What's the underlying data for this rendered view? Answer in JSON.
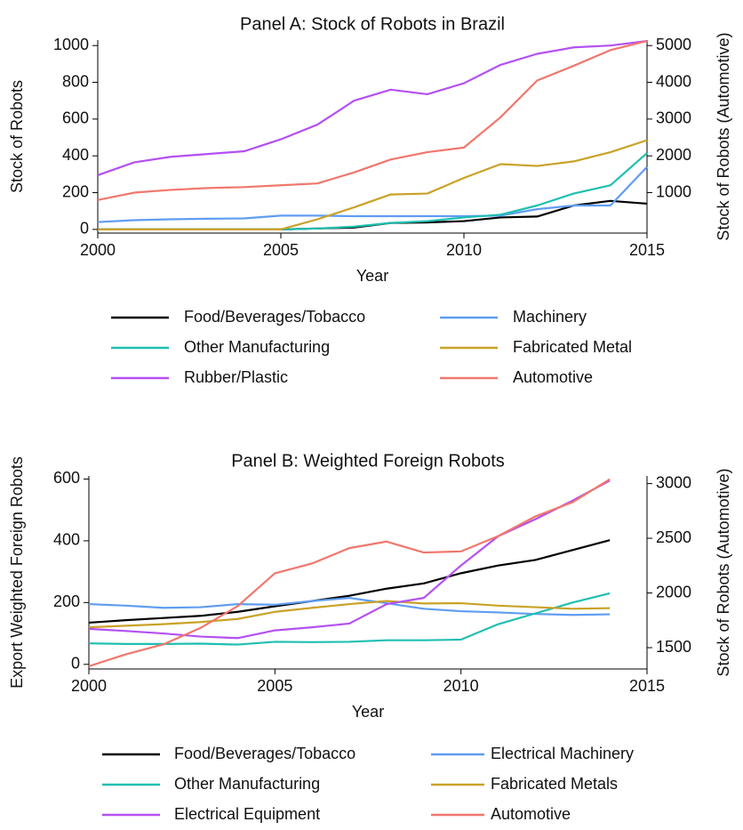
{
  "chart_data": [
    {
      "type": "line",
      "title": "Panel A: Stock of Robots in Brazil",
      "x_label": "Year",
      "y_label": "Stock of Robots",
      "y2_label": "Stock of Robots (Automotive)",
      "x": [
        2000,
        2001,
        2002,
        2003,
        2004,
        2005,
        2006,
        2007,
        2008,
        2009,
        2010,
        2011,
        2012,
        2013,
        2014,
        2015
      ],
      "xlim": [
        2000,
        2015
      ],
      "xticks": [
        2000,
        2005,
        2010,
        2015
      ],
      "ylim": [
        -20,
        1030
      ],
      "yticks": [
        0,
        200,
        400,
        600,
        800,
        1000
      ],
      "y2lim": [
        -100,
        5150
      ],
      "y2ticks": [
        1000,
        2000,
        3000,
        4000,
        5000
      ],
      "series": [
        {
          "name": "Food/Beverages/Tobacco",
          "color": "#000000",
          "values": [
            0,
            0,
            0,
            0,
            0,
            0,
            5,
            10,
            35,
            38,
            45,
            65,
            70,
            130,
            155,
            140
          ]
        },
        {
          "name": "Machinery",
          "color": "#5f9df2",
          "values": [
            40,
            50,
            55,
            58,
            60,
            75,
            75,
            72,
            72,
            72,
            72,
            75,
            110,
            130,
            130,
            340
          ]
        },
        {
          "name": "Other Manufacturing",
          "color": "#1fbfb0",
          "values": [
            0,
            0,
            0,
            0,
            0,
            0,
            5,
            15,
            35,
            45,
            65,
            80,
            130,
            195,
            240,
            415
          ]
        },
        {
          "name": "Fabricated Metal",
          "color": "#c9a227",
          "values": [
            0,
            0,
            0,
            0,
            0,
            0,
            55,
            120,
            190,
            195,
            280,
            355,
            345,
            370,
            420,
            485
          ]
        },
        {
          "name": "Rubber/Plastic",
          "color": "#b450f2",
          "values": [
            295,
            365,
            395,
            410,
            425,
            490,
            570,
            700,
            760,
            735,
            795,
            895,
            955,
            990,
            1000,
            1025
          ]
        },
        {
          "name": "Automotive",
          "color": "#f0776c",
          "axis": "y2",
          "values": [
            800,
            1000,
            1075,
            1125,
            1150,
            1200,
            1250,
            1550,
            1900,
            2100,
            2225,
            3050,
            4050,
            4450,
            4875,
            5125
          ]
        }
      ]
    },
    {
      "type": "line",
      "title": "Panel B: Weighted Foreign Robots",
      "x_label": "Year",
      "y_label": "Export Weighted Foreign Robots",
      "y2_label": "Stock of Robots (Automotive)",
      "x": [
        2000,
        2001,
        2002,
        2003,
        2004,
        2005,
        2006,
        2007,
        2008,
        2009,
        2010,
        2011,
        2012,
        2013,
        2014
      ],
      "xlim": [
        2000,
        2015
      ],
      "xticks": [
        2000,
        2005,
        2010,
        2015
      ],
      "ylim": [
        -15,
        610
      ],
      "yticks": [
        0,
        200,
        400,
        600
      ],
      "y2lim": [
        1305,
        3070
      ],
      "y2ticks": [
        1500,
        2000,
        2500,
        3000
      ],
      "series": [
        {
          "name": "Food/Beverages/Tobacco",
          "color": "#000000",
          "values": [
            135,
            143,
            150,
            157,
            170,
            188,
            205,
            222,
            245,
            262,
            295,
            320,
            338,
            370,
            402
          ]
        },
        {
          "name": "Electrical Machinery",
          "color": "#5f9df2",
          "values": [
            195,
            190,
            183,
            185,
            195,
            193,
            205,
            215,
            198,
            180,
            172,
            168,
            163,
            160,
            162
          ]
        },
        {
          "name": "Other Manufacturing",
          "color": "#1fbfb0",
          "values": [
            68,
            66,
            66,
            67,
            64,
            73,
            72,
            73,
            78,
            78,
            80,
            130,
            165,
            200,
            230
          ]
        },
        {
          "name": "Fabricated Metals",
          "color": "#c9a227",
          "values": [
            120,
            125,
            130,
            137,
            147,
            170,
            183,
            195,
            205,
            197,
            198,
            190,
            185,
            180,
            182
          ]
        },
        {
          "name": "Electrical Equipment",
          "color": "#b450f2",
          "values": [
            115,
            108,
            100,
            90,
            85,
            110,
            120,
            132,
            195,
            215,
            320,
            415,
            470,
            530,
            595
          ]
        },
        {
          "name": "Automotive",
          "color": "#f0776c",
          "axis": "y2",
          "values": [
            1330,
            1440,
            1530,
            1680,
            1880,
            2180,
            2270,
            2410,
            2470,
            2370,
            2380,
            2520,
            2700,
            2830,
            3040
          ]
        }
      ]
    }
  ]
}
